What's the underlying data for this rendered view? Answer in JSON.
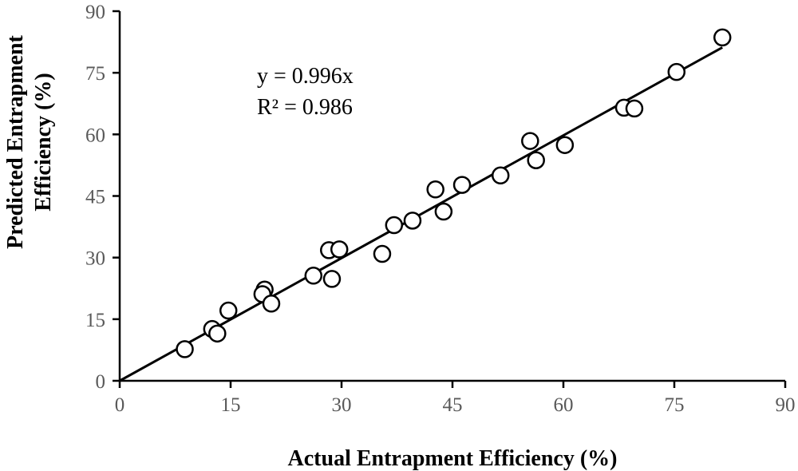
{
  "chart_data": {
    "type": "scatter",
    "xlabel": "Actual Entrapment Efficiency (%)",
    "ylabel_lines": [
      "Predicted Entrapment",
      "Efficiency (%)"
    ],
    "xlim": [
      0,
      90
    ],
    "ylim": [
      0,
      90
    ],
    "x_ticks": [
      0,
      15,
      30,
      45,
      60,
      75,
      90
    ],
    "y_ticks": [
      0,
      15,
      30,
      45,
      60,
      75,
      90
    ],
    "grid": false,
    "legend": "none",
    "annotations": [
      "y = 0.996x",
      "R² = 0.986"
    ],
    "trendline": {
      "slope": 0.996,
      "intercept": 0,
      "x_range": [
        0,
        81.5
      ]
    },
    "marker_color": "#000000",
    "series": [
      {
        "x": [
          8.8,
          12.5,
          13.2,
          14.7,
          19.6,
          19.3,
          20.5,
          26.2,
          28.3,
          28.7,
          29.7,
          35.5,
          37.1,
          39.6,
          42.7,
          43.8,
          46.3,
          51.5,
          55.5,
          56.3,
          60.2,
          68.2,
          69.6,
          75.3,
          81.5
        ],
        "y": [
          7.7,
          12.6,
          11.5,
          17.1,
          22.2,
          21.1,
          18.8,
          25.6,
          31.8,
          24.8,
          32.0,
          30.9,
          37.9,
          39.0,
          46.6,
          41.2,
          47.7,
          50.0,
          58.4,
          53.7,
          57.4,
          66.5,
          66.3,
          75.2,
          83.6
        ]
      }
    ]
  }
}
